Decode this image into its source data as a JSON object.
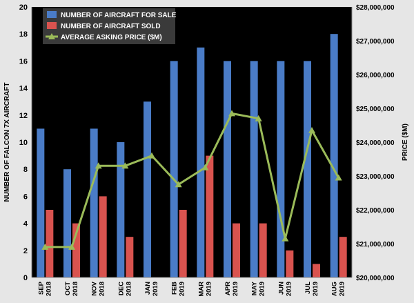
{
  "chart_data": {
    "type": "bar",
    "categories": [
      [
        "SEP",
        "2018"
      ],
      [
        "OCT",
        "2018"
      ],
      [
        "NOV",
        "2018"
      ],
      [
        "DEC",
        "2018"
      ],
      [
        "JAN",
        "2019"
      ],
      [
        "FEB",
        "2019"
      ],
      [
        "MAR",
        "2019"
      ],
      [
        "APR",
        "2019"
      ],
      [
        "MAY",
        "2019"
      ],
      [
        "JUN",
        "2019"
      ],
      [
        "JUL",
        "2019"
      ],
      [
        "AUG",
        "2019"
      ]
    ],
    "series": [
      {
        "name": "NUMBER OF AIRCRAFT FOR SALE",
        "type": "bar",
        "axis": "left",
        "color": "#4a7cc7",
        "values": [
          11,
          8,
          11,
          10,
          13,
          16,
          17,
          16,
          16,
          16,
          16,
          18
        ]
      },
      {
        "name": "NUMBER OF AIRCRAFT SOLD",
        "type": "bar",
        "axis": "left",
        "color": "#d9534f",
        "values": [
          5,
          4,
          6,
          3,
          0,
          5,
          9,
          4,
          4,
          2,
          1,
          3
        ]
      },
      {
        "name": "AVERAGE ASKING PRICE ($M)",
        "type": "line",
        "axis": "right",
        "color": "#9bbb59",
        "values": [
          20900000,
          20900000,
          23300000,
          23300000,
          23600000,
          22750000,
          23250000,
          24850000,
          24700000,
          21150000,
          24350000,
          22950000
        ]
      }
    ],
    "ylabel": "NUMBER OF FALCON 7X AIRCRAFT",
    "y2label": "PRICE ($M)",
    "ylim": [
      0,
      20
    ],
    "yticks": [
      0,
      2,
      4,
      6,
      8,
      10,
      12,
      14,
      16,
      18,
      20
    ],
    "y2lim": [
      20000000,
      28000000
    ],
    "y2ticks": [
      "$20,000,000",
      "$21,000,000",
      "$22,000,000",
      "$23,000,000",
      "$24,000,000",
      "$25,000,000",
      "$26,000,000",
      "$27,000,000",
      "$28,000,000"
    ],
    "legend": "top-left",
    "grid": false,
    "plot_background": "#000000"
  }
}
